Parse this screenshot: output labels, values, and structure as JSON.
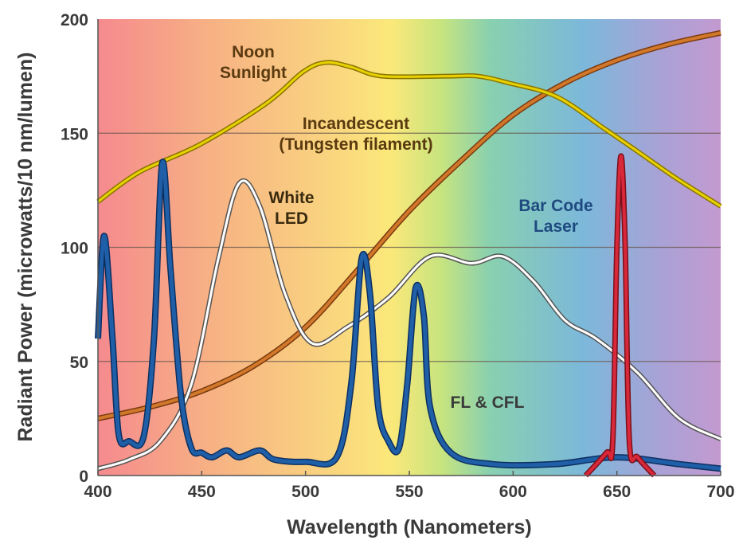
{
  "chart_data": {
    "type": "line",
    "title": "",
    "xlabel": "Wavelength (Nanometers)",
    "ylabel": "Radiant Power (microwatts/10 nm/lumen)",
    "xlim": [
      400,
      700
    ],
    "ylim": [
      0,
      200
    ],
    "xticks": [
      400,
      450,
      500,
      550,
      600,
      650,
      700
    ],
    "yticks": [
      0,
      50,
      100,
      150,
      200
    ],
    "grid": "horizontal",
    "background": "visible spectrum gradient",
    "series": [
      {
        "name": "Noon Sunlight",
        "label_lines": [
          "Noon",
          "Sunlight"
        ],
        "color": "#e8d200",
        "outline": "#8a7400",
        "x": [
          400,
          420,
          449,
          481,
          499,
          510,
          522,
          537,
          568,
          583,
          598,
          621,
          644,
          660,
          679,
          700
        ],
        "y": [
          120,
          133,
          145,
          163,
          177,
          181,
          179,
          175,
          175,
          175,
          172,
          166,
          152,
          142,
          130,
          118
        ]
      },
      {
        "name": "Incandescent (Tungsten filament)",
        "label_lines": [
          "Incandescent",
          "(Tungsten filament)"
        ],
        "color": "#d2782a",
        "outline": "#7a3a10",
        "x": [
          400,
          425,
          450,
          475,
          500,
          525,
          550,
          575,
          600,
          625,
          650,
          675,
          700
        ],
        "y": [
          25,
          30,
          37,
          48,
          65,
          90,
          116,
          138,
          158,
          172,
          182,
          189,
          194
        ]
      },
      {
        "name": "White LED",
        "label_lines": [
          "White",
          "LED"
        ],
        "color": "#ffffff",
        "outline": "#555555",
        "x": [
          400,
          415,
          430,
          445,
          458,
          468,
          478,
          490,
          503,
          520,
          540,
          560,
          580,
          595,
          610,
          625,
          640,
          660,
          680,
          700
        ],
        "y": [
          3,
          7,
          15,
          40,
          95,
          128,
          118,
          80,
          58,
          65,
          78,
          96,
          93,
          96,
          85,
          68,
          60,
          45,
          25,
          16
        ]
      },
      {
        "name": "FL & CFL",
        "label_lines": [
          "FL & CFL"
        ],
        "color": "#1f5fa8",
        "outline": "#0d2f60",
        "x": [
          400,
          403,
          407,
          410,
          415,
          422,
          427,
          431,
          435,
          440,
          445,
          450,
          455,
          462,
          468,
          478,
          485,
          500,
          515,
          522,
          527,
          531,
          535,
          540,
          545,
          549,
          553,
          557,
          560,
          570,
          590,
          620,
          650,
          680,
          700
        ],
        "y": [
          60,
          105,
          60,
          18,
          15,
          17,
          60,
          137,
          90,
          35,
          12,
          10,
          8,
          11,
          8,
          11,
          7,
          6,
          8,
          40,
          95,
          80,
          30,
          15,
          12,
          40,
          82,
          70,
          30,
          10,
          5,
          5,
          8,
          5,
          3
        ]
      },
      {
        "name": "Bar Code Laser",
        "label_lines": [
          "Bar Code",
          "Laser"
        ],
        "color": "#d8283a",
        "outline": "#7a0f1a",
        "x": [
          635,
          645,
          648,
          650,
          652,
          654,
          656,
          660,
          668
        ],
        "y": [
          0,
          10,
          15,
          100,
          140,
          100,
          15,
          8,
          0
        ]
      }
    ]
  }
}
